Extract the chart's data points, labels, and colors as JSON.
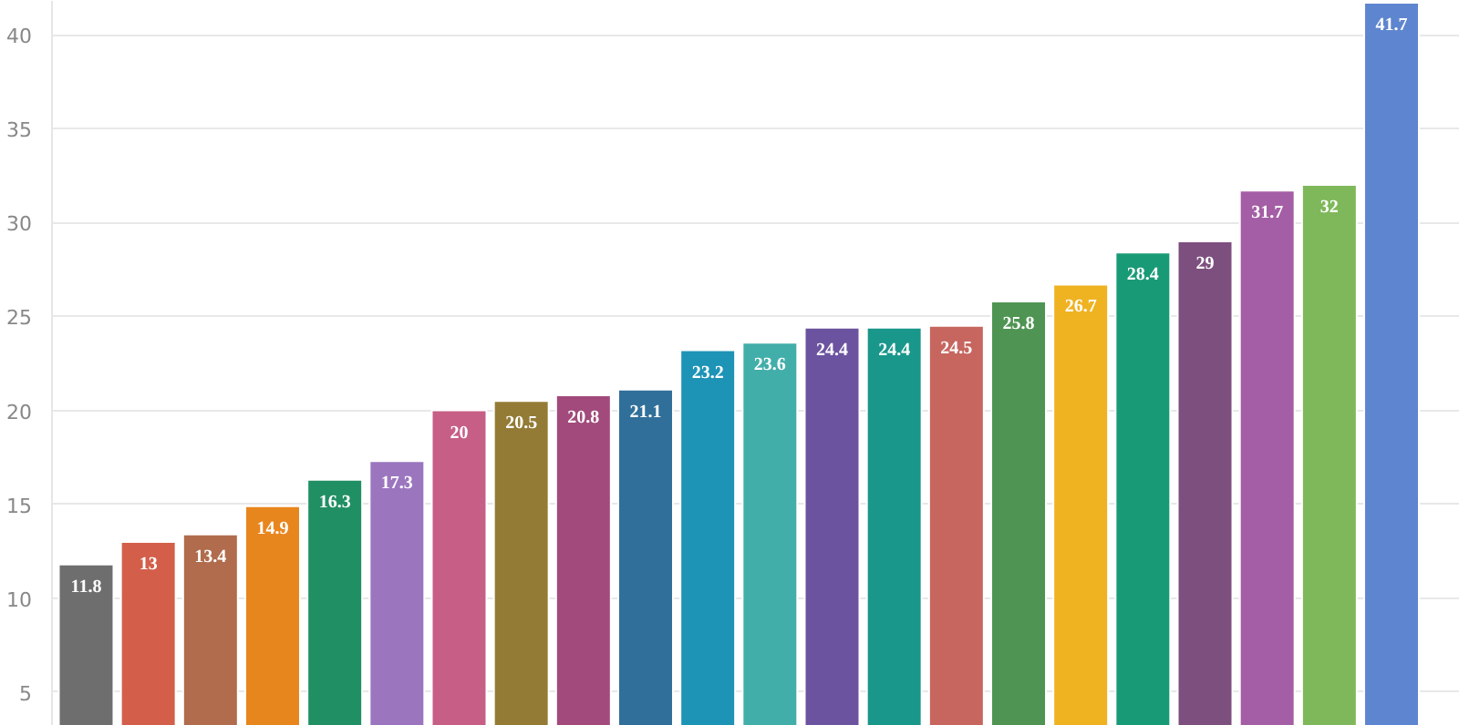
{
  "chart_data": {
    "type": "bar",
    "categories": [
      null,
      null,
      null,
      null,
      null,
      null,
      null,
      null,
      null,
      null,
      null,
      null,
      null,
      null,
      null,
      null,
      null,
      null,
      null,
      null,
      null,
      null
    ],
    "values": [
      11.8,
      13,
      13.4,
      14.9,
      16.3,
      17.3,
      20,
      20.5,
      20.8,
      21.1,
      23.2,
      23.6,
      24.4,
      24.4,
      24.5,
      25.8,
      26.7,
      28.4,
      29,
      31.7,
      32,
      41.7
    ],
    "colors": [
      "#6e6e6e",
      "#d35f4a",
      "#b06c4c",
      "#e8861e",
      "#218f64",
      "#9b76bf",
      "#c65e85",
      "#937b35",
      "#a14a7b",
      "#306f99",
      "#1d93b6",
      "#42aea9",
      "#6b53a0",
      "#1a978b",
      "#c6665f",
      "#4f9453",
      "#efb221",
      "#199a77",
      "#7c4f7e",
      "#a45ea5",
      "#7fb85a",
      "#5e85cf"
    ],
    "ylim": [
      3.2,
      41.8
    ],
    "yticks": [
      5,
      10,
      15,
      20,
      25,
      30,
      35,
      40
    ],
    "grid": "y",
    "data_labels": true,
    "tick_labels": "y"
  }
}
